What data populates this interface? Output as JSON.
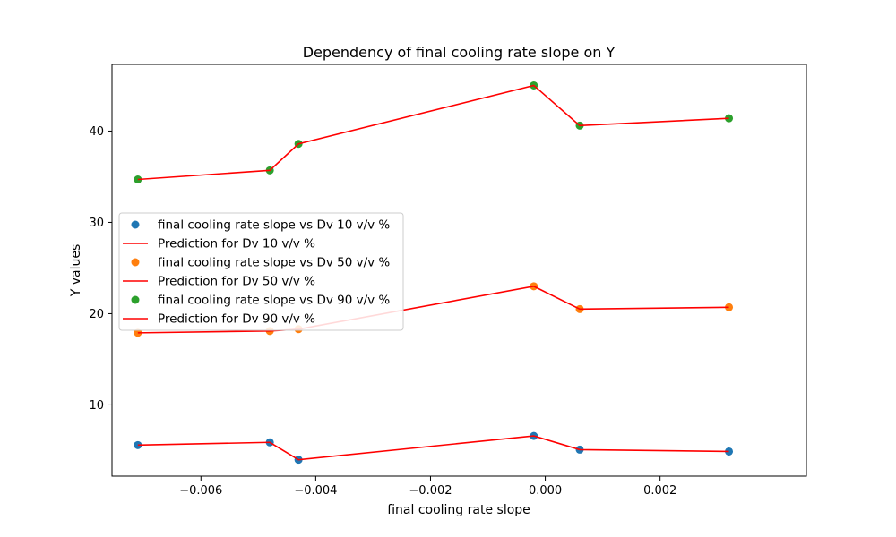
{
  "chart_data": {
    "type": "scatter",
    "title": "Dependency of final cooling rate slope on Y",
    "xlabel": "final cooling rate slope",
    "ylabel": "Y values",
    "xlim": [
      -0.00755,
      0.00455
    ],
    "ylim": [
      2.2,
      47.3
    ],
    "xticks": [
      -0.006,
      -0.004,
      -0.002,
      0.0,
      0.002
    ],
    "xtick_labels": [
      "−0.006",
      "−0.004",
      "−0.002",
      "0.000",
      "0.002"
    ],
    "yticks": [
      10,
      20,
      30,
      40
    ],
    "ytick_labels": [
      "10",
      "20",
      "30",
      "40"
    ],
    "grid": false,
    "legend_position": "center-left",
    "x": [
      -0.0071,
      -0.0048,
      -0.0043,
      -0.0002,
      0.0006,
      0.0032
    ],
    "series": [
      {
        "name": "final cooling rate slope vs Dv 10 v/v %",
        "kind": "scatter",
        "color": "#1f77b4",
        "values": [
          5.6,
          5.9,
          4.0,
          6.6,
          5.1,
          4.9
        ]
      },
      {
        "name": "Prediction for Dv 10 v/v %",
        "kind": "line",
        "color": "#ff0000",
        "values": [
          5.6,
          5.9,
          4.0,
          6.6,
          5.1,
          4.9
        ]
      },
      {
        "name": "final cooling rate slope vs Dv 50 v/v %",
        "kind": "scatter",
        "color": "#ff7f0e",
        "values": [
          17.9,
          18.1,
          18.3,
          23.0,
          20.5,
          20.7
        ]
      },
      {
        "name": "Prediction for Dv 50 v/v %",
        "kind": "line",
        "color": "#ff0000",
        "values": [
          17.9,
          18.1,
          18.3,
          23.0,
          20.5,
          20.7
        ]
      },
      {
        "name": "final cooling rate slope vs Dv 90 v/v %",
        "kind": "scatter",
        "color": "#2ca02c",
        "values": [
          34.7,
          35.7,
          38.6,
          45.0,
          40.6,
          41.4
        ]
      },
      {
        "name": "Prediction for Dv 90 v/v %",
        "kind": "line",
        "color": "#ff0000",
        "values": [
          34.7,
          35.7,
          38.6,
          45.0,
          40.6,
          41.4
        ]
      }
    ]
  }
}
